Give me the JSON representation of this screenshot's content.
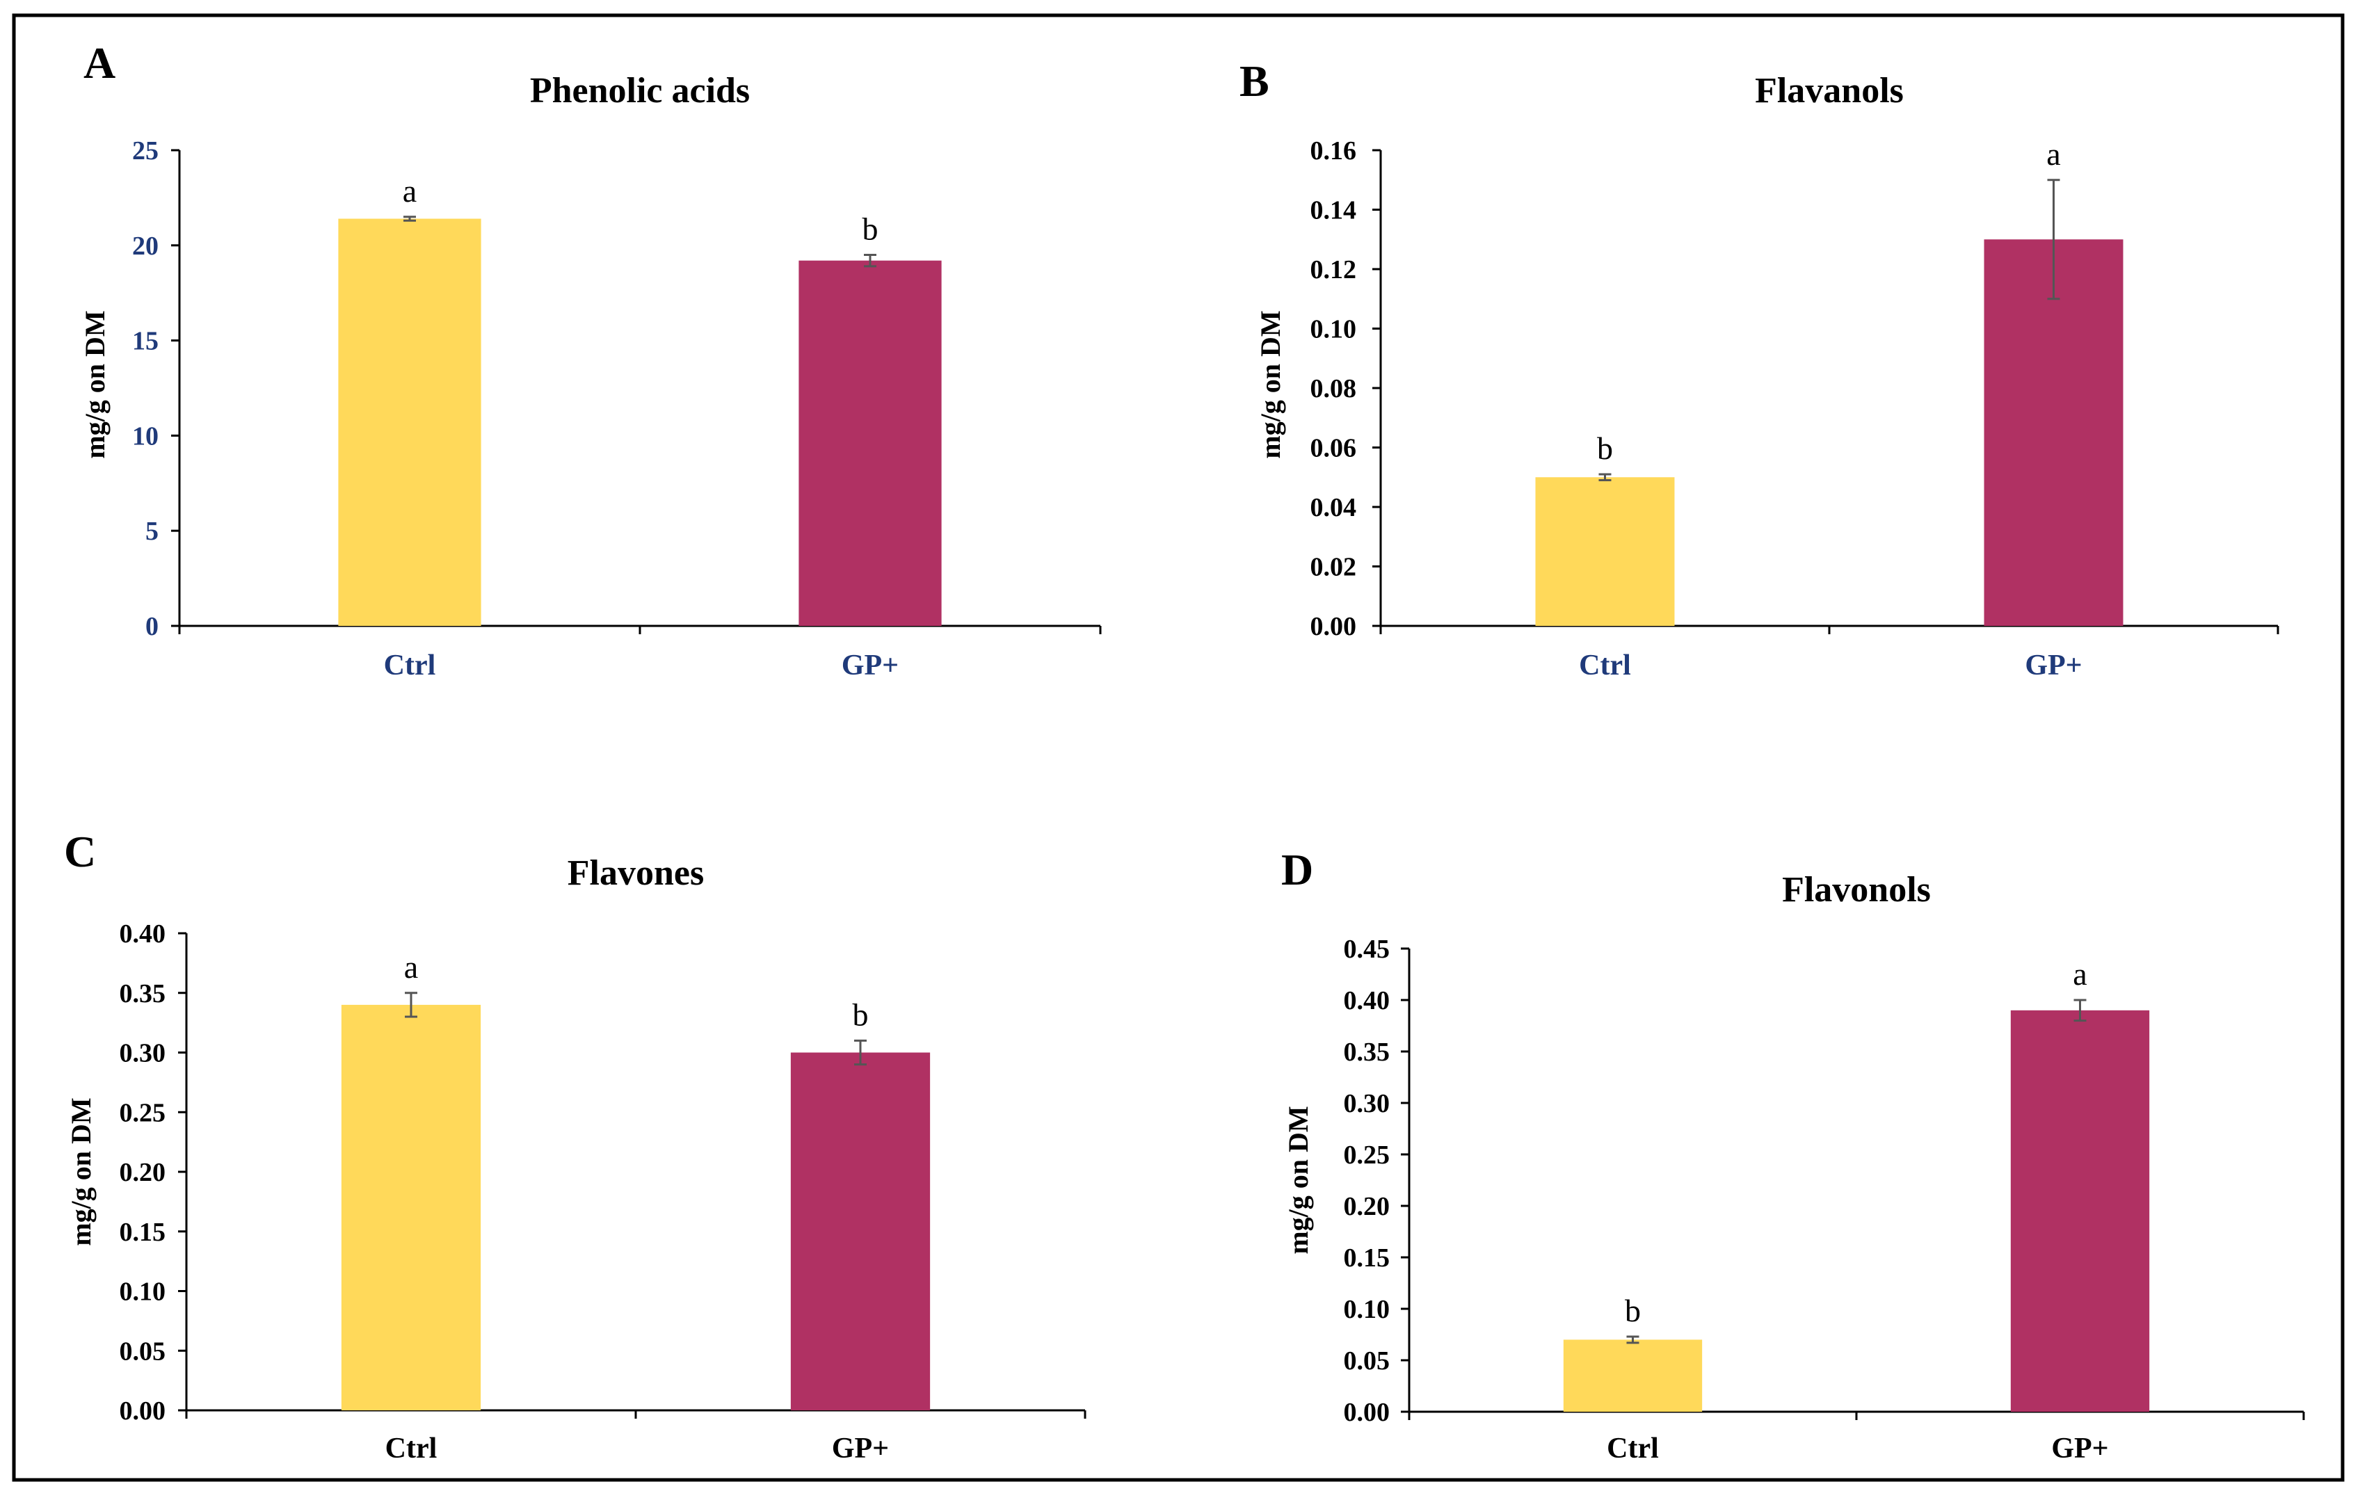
{
  "chart_data": [
    {
      "panel": "A",
      "type": "bar",
      "title": "Phenolic acids",
      "xlabel": "",
      "ylabel": "mg/g on DM",
      "ylim": [
        0,
        25
      ],
      "yticks": [
        "0",
        "5",
        "10",
        "15",
        "20",
        "25"
      ],
      "tick_color": "#1f3a7a",
      "categories": [
        "Ctrl",
        "GP+"
      ],
      "values": [
        21.4,
        19.2
      ],
      "errors": [
        0.1,
        0.3
      ],
      "letters": [
        "a",
        "b"
      ],
      "colors": [
        "#ffd95a",
        "#b03163"
      ]
    },
    {
      "panel": "B",
      "type": "bar",
      "title": "Flavanols",
      "xlabel": "",
      "ylabel": "mg/g on DM",
      "ylim": [
        0,
        0.16
      ],
      "yticks": [
        "0.00",
        "0.02",
        "0.04",
        "0.06",
        "0.08",
        "0.10",
        "0.12",
        "0.14",
        "0.16"
      ],
      "tick_color": "#000000",
      "cat_color": "#1f3a7a",
      "categories": [
        "Ctrl",
        "GP+"
      ],
      "values": [
        0.05,
        0.13
      ],
      "errors": [
        0.001,
        0.02
      ],
      "letters": [
        "b",
        "a"
      ],
      "colors": [
        "#ffd95a",
        "#b03163"
      ]
    },
    {
      "panel": "C",
      "type": "bar",
      "title": "Flavones",
      "xlabel": "",
      "ylabel": "mg/g on DM",
      "ylim": [
        0,
        0.4
      ],
      "yticks": [
        "0.00",
        "0.05",
        "0.10",
        "0.15",
        "0.20",
        "0.25",
        "0.30",
        "0.35",
        "0.40"
      ],
      "tick_color": "#000000",
      "cat_color": "#000000",
      "categories": [
        "Ctrl",
        "GP+"
      ],
      "values": [
        0.34,
        0.3
      ],
      "errors": [
        0.01,
        0.01
      ],
      "letters": [
        "a",
        "b"
      ],
      "colors": [
        "#ffd95a",
        "#b03163"
      ]
    },
    {
      "panel": "D",
      "type": "bar",
      "title": "Flavonols",
      "xlabel": "",
      "ylabel": "mg/g on DM",
      "ylim": [
        0,
        0.45
      ],
      "yticks": [
        "0.00",
        "0.05",
        "0.10",
        "0.15",
        "0.20",
        "0.25",
        "0.30",
        "0.35",
        "0.40",
        "0.45"
      ],
      "tick_color": "#000000",
      "cat_color": "#000000",
      "categories": [
        "Ctrl",
        "GP+"
      ],
      "values": [
        0.07,
        0.39
      ],
      "errors": [
        0.003,
        0.01
      ],
      "letters": [
        "b",
        "a"
      ],
      "colors": [
        "#ffd95a",
        "#b03163"
      ]
    }
  ]
}
